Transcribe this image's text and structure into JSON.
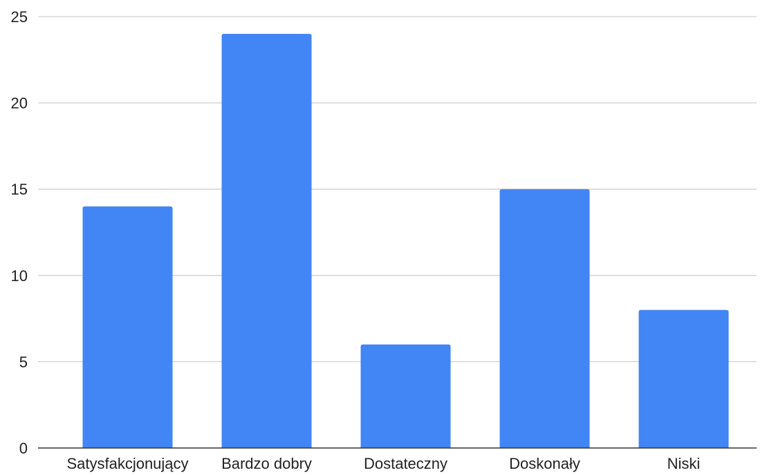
{
  "chart_data": {
    "type": "bar",
    "title": "",
    "xlabel": "",
    "ylabel": "",
    "categories": [
      "Satysfakcjonujący",
      "Bardzo dobry",
      "Dostateczny",
      "Doskonały",
      "Niski"
    ],
    "values": [
      14,
      24,
      6,
      15,
      8
    ],
    "ylim": [
      0,
      25
    ],
    "yticks": [
      0,
      5,
      10,
      15,
      20,
      25
    ],
    "grid": true,
    "legend": "none",
    "bar_color": "#4285F4",
    "grid_color": "#D0D0D0",
    "axis_color": "#333333",
    "text_color": "#222222"
  }
}
